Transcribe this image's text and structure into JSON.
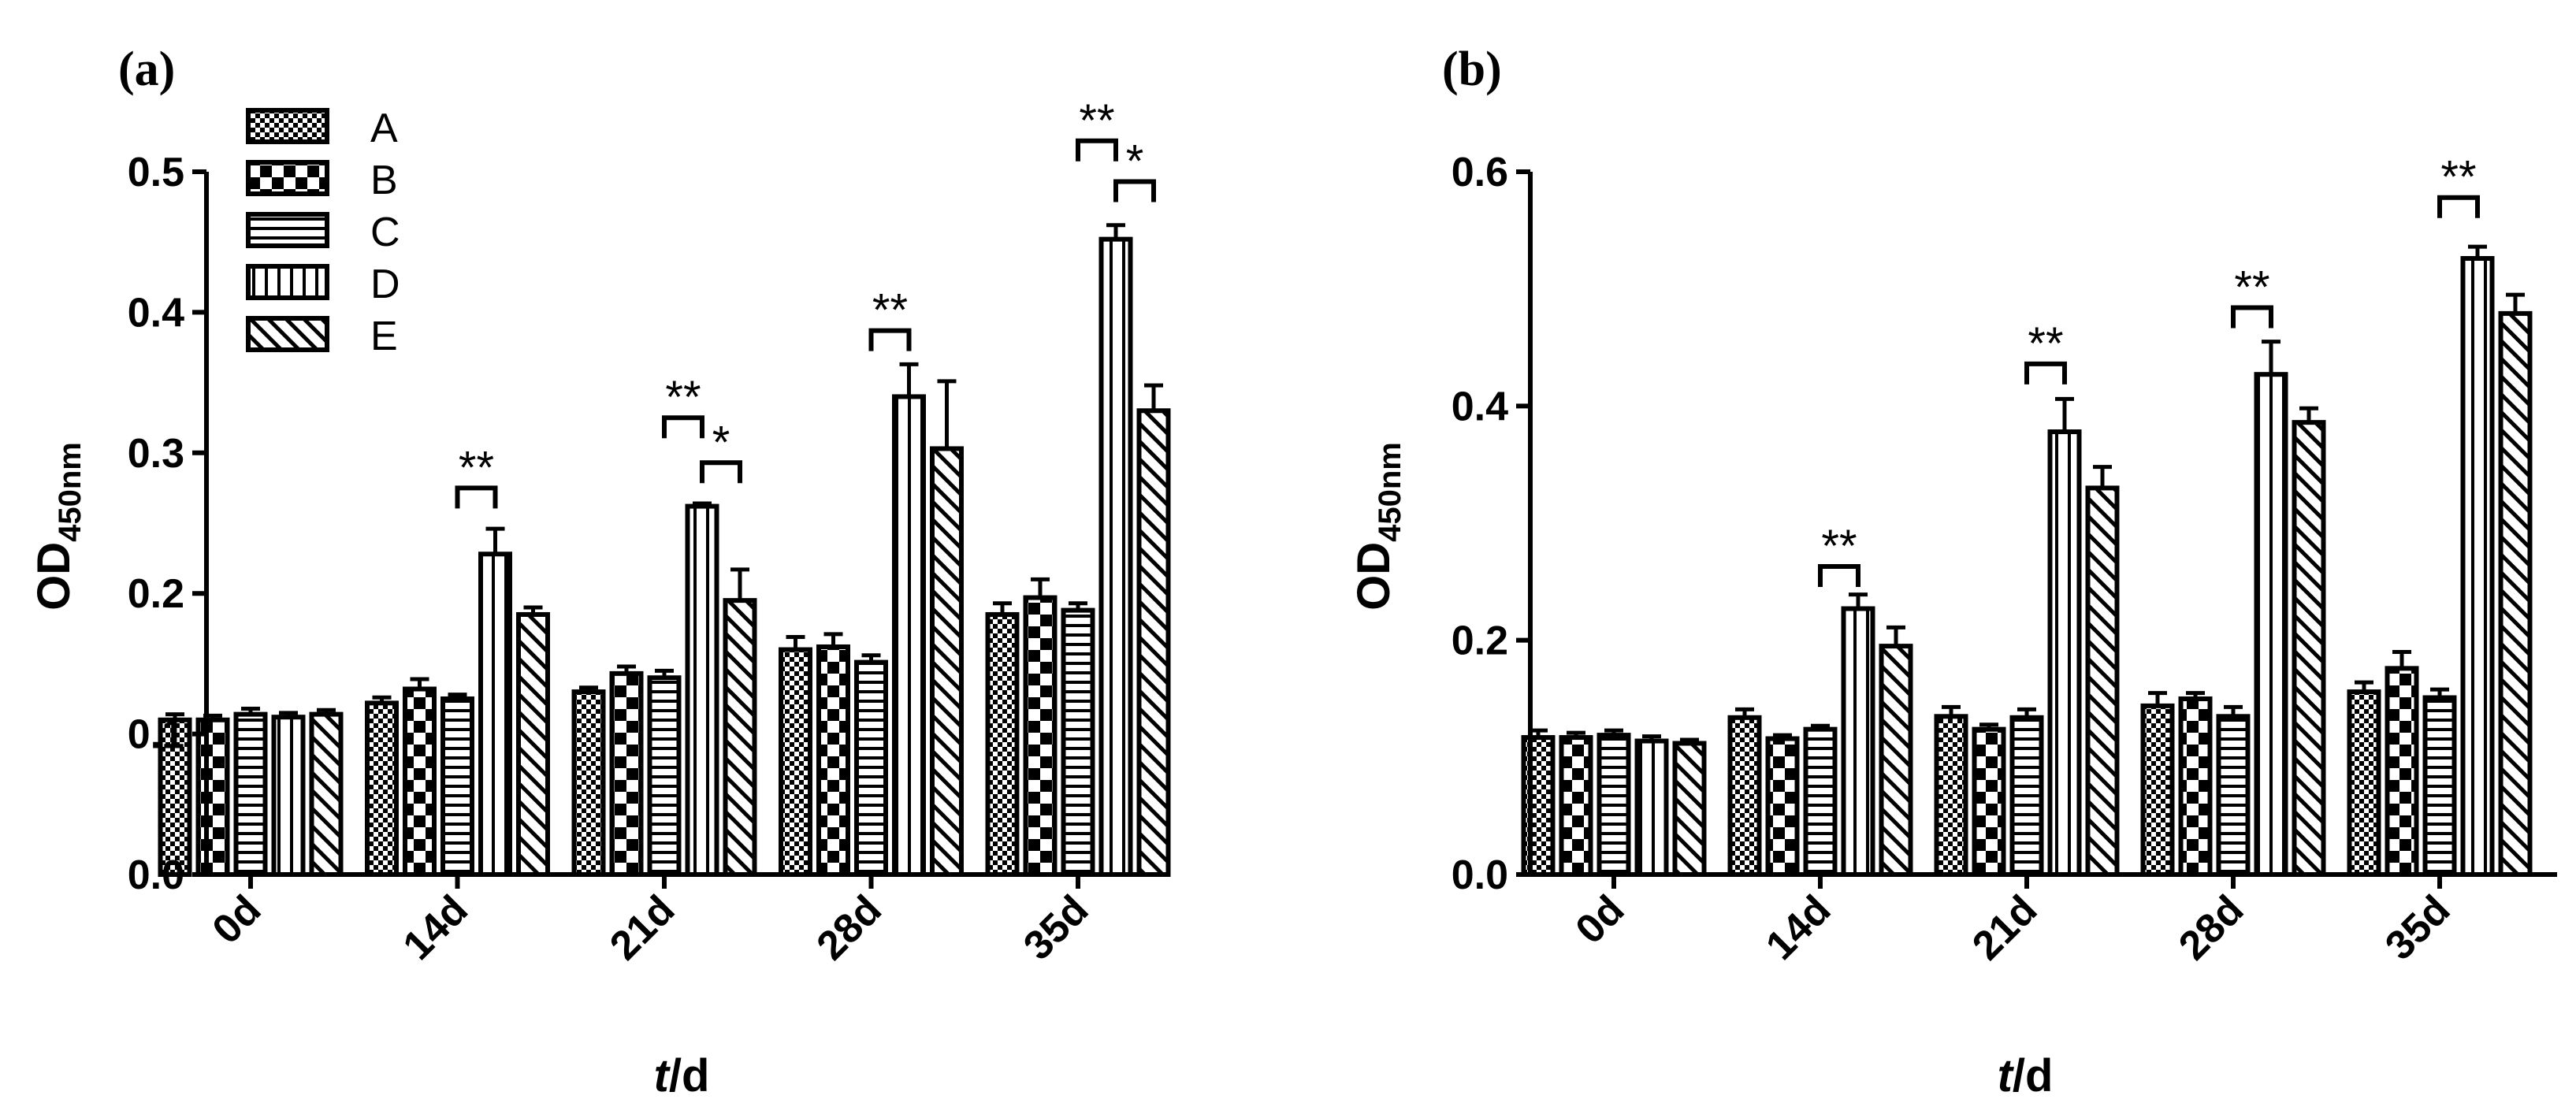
{
  "colors": {
    "ink": "#000000",
    "background": "#ffffff"
  },
  "legend": [
    "A",
    "B",
    "C",
    "D",
    "E"
  ],
  "chart_data": [
    {
      "type": "bar",
      "panel": "(a)",
      "categories": [
        "0d",
        "14d",
        "21d",
        "28d",
        "35d"
      ],
      "xlabel_italic": "t",
      "xlabel_rest": "/d",
      "ylabel_main": "OD",
      "ylabel_sub": "450nm",
      "ylim": [
        0,
        0.5
      ],
      "yticks": [
        "0.0",
        "0.1",
        "0.2",
        "0.3",
        "0.4",
        "0.5"
      ],
      "series": [
        {
          "name": "A",
          "pattern": "checker-fine",
          "values": [
            0.11,
            0.122,
            0.13,
            0.16,
            0.185
          ],
          "errors": [
            0.004,
            0.004,
            0.003,
            0.009,
            0.008
          ]
        },
        {
          "name": "B",
          "pattern": "checker-bold",
          "values": [
            0.11,
            0.132,
            0.143,
            0.162,
            0.197
          ],
          "errors": [
            0.003,
            0.007,
            0.005,
            0.009,
            0.013
          ]
        },
        {
          "name": "C",
          "pattern": "horizontal-lines",
          "values": [
            0.114,
            0.125,
            0.14,
            0.151,
            0.188
          ],
          "errors": [
            0.004,
            0.003,
            0.005,
            0.005,
            0.005
          ]
        },
        {
          "name": "D",
          "pattern": "vertical-lines",
          "values": [
            0.112,
            0.228,
            0.262,
            0.34,
            0.452
          ],
          "errors": [
            0.003,
            0.018,
            0.002,
            0.023,
            0.01
          ]
        },
        {
          "name": "E",
          "pattern": "diagonal-lines",
          "values": [
            0.114,
            0.185,
            0.195,
            0.303,
            0.33
          ],
          "errors": [
            0.003,
            0.005,
            0.022,
            0.048,
            0.018
          ]
        }
      ],
      "significance": [
        {
          "category": 1,
          "from": 2,
          "to": 3,
          "y": 0.275,
          "label": "**"
        },
        {
          "category": 2,
          "from": 2,
          "to": 3,
          "y": 0.325,
          "label": "**"
        },
        {
          "category": 2,
          "from": 3,
          "to": 4,
          "y": 0.293,
          "label": "*"
        },
        {
          "category": 3,
          "from": 2,
          "to": 3,
          "y": 0.387,
          "label": "**"
        },
        {
          "category": 4,
          "from": 2,
          "to": 3,
          "y": 0.522,
          "label": "**"
        },
        {
          "category": 4,
          "from": 3,
          "to": 4,
          "y": 0.493,
          "label": "*"
        }
      ]
    },
    {
      "type": "bar",
      "panel": "(b)",
      "categories": [
        "0d",
        "14d",
        "21d",
        "28d",
        "35d"
      ],
      "xlabel_italic": "t",
      "xlabel_rest": "/d",
      "ylabel_main": "OD",
      "ylabel_sub": "450nm",
      "ylim": [
        0,
        0.6
      ],
      "yticks": [
        "0.0",
        "0.2",
        "0.4",
        "0.6"
      ],
      "series": [
        {
          "name": "A",
          "pattern": "checker-fine",
          "values": [
            0.117,
            0.134,
            0.135,
            0.144,
            0.156
          ],
          "errors": [
            0.006,
            0.007,
            0.008,
            0.011,
            0.008
          ]
        },
        {
          "name": "B",
          "pattern": "checker-bold",
          "values": [
            0.117,
            0.116,
            0.124,
            0.15,
            0.176
          ],
          "errors": [
            0.004,
            0.003,
            0.004,
            0.005,
            0.014
          ]
        },
        {
          "name": "C",
          "pattern": "horizontal-lines",
          "values": [
            0.119,
            0.124,
            0.134,
            0.135,
            0.151
          ],
          "errors": [
            0.004,
            0.003,
            0.007,
            0.008,
            0.007
          ]
        },
        {
          "name": "D",
          "pattern": "vertical-lines",
          "values": [
            0.114,
            0.227,
            0.378,
            0.427,
            0.526
          ],
          "errors": [
            0.004,
            0.012,
            0.028,
            0.028,
            0.01
          ]
        },
        {
          "name": "E",
          "pattern": "diagonal-lines",
          "values": [
            0.112,
            0.195,
            0.33,
            0.386,
            0.479
          ],
          "errors": [
            0.003,
            0.016,
            0.018,
            0.012,
            0.016
          ]
        }
      ],
      "significance": [
        {
          "category": 1,
          "from": 2,
          "to": 3,
          "y": 0.263,
          "label": "**"
        },
        {
          "category": 2,
          "from": 2,
          "to": 3,
          "y": 0.436,
          "label": "**"
        },
        {
          "category": 3,
          "from": 2,
          "to": 3,
          "y": 0.484,
          "label": "**"
        },
        {
          "category": 4,
          "from": 2,
          "to": 3,
          "y": 0.578,
          "label": "**"
        }
      ]
    }
  ]
}
